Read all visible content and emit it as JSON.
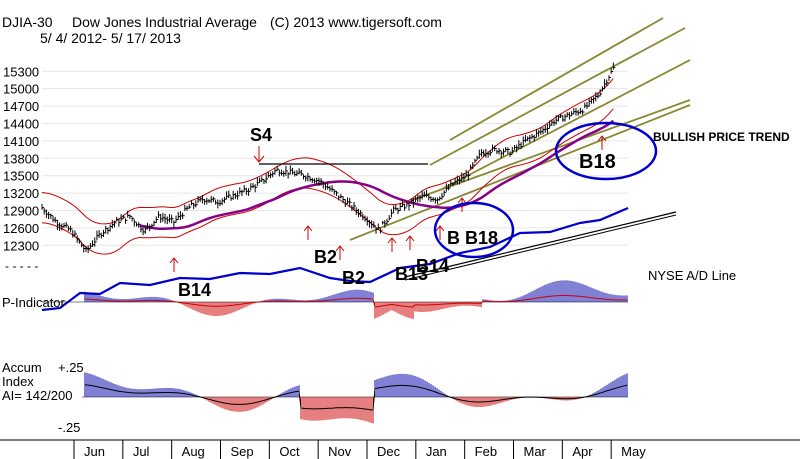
{
  "chart_data": {
    "type": "line",
    "symbol": "DJIA-30",
    "title": "Dow Jones Industrial Average",
    "copyright": "(C) 2013 www.tigersoft.com",
    "date_range": "5/ 4/ 2012- 5/ 17/ 2013",
    "y_ticks": [
      "15300",
      "15000",
      "14700",
      "14400",
      "14100",
      "13800",
      "13500",
      "13200",
      "12900",
      "12600",
      "12300"
    ],
    "y_tick_values": [
      15300,
      15000,
      14700,
      14400,
      14100,
      13800,
      13500,
      13200,
      12900,
      12600,
      12300
    ],
    "ylim": [
      12150,
      15460
    ],
    "months": [
      "Jun",
      "Jul",
      "Aug",
      "Sep",
      "Oct",
      "Nov",
      "Dec",
      "Jan",
      "Feb",
      "Mar",
      "Apr",
      "May"
    ],
    "price_series": {
      "name": "DJIA close (approx.)",
      "t": [
        0,
        0.3,
        0.6,
        0.9,
        1.2,
        1.5,
        1.8,
        2.1,
        2.4,
        2.7,
        3.0,
        3.3,
        3.6,
        3.9,
        4.2,
        4.5,
        4.8,
        5.1,
        5.4,
        5.7,
        6.0,
        6.3,
        6.6,
        6.9,
        7.2,
        7.5,
        7.8,
        8.1,
        8.4,
        8.7,
        9.0,
        9.3,
        9.6,
        9.9,
        10.2,
        10.5,
        10.8,
        11.1,
        11.4,
        11.7
      ],
      "values": [
        12950,
        12700,
        12550,
        12200,
        12500,
        12700,
        12800,
        12550,
        12800,
        12700,
        12950,
        13100,
        13050,
        13150,
        13250,
        13400,
        13600,
        13550,
        13500,
        13400,
        13200,
        13000,
        12800,
        12560,
        12900,
        13000,
        13150,
        13100,
        13350,
        13500,
        13900,
        13950,
        13900,
        14100,
        14250,
        14450,
        14550,
        14650,
        14900,
        15350
      ]
    },
    "series_labels": {
      "ad_line": "NYSE A/D Line",
      "p_indicator": "P-Indicator",
      "accum_index": "Accum",
      "accum_index_line2": "Index",
      "ai_value": "AI= 142/200"
    },
    "accum_axis": {
      "top": "+.25",
      "bottom": "-.25"
    },
    "annotations": {
      "s4": "S4",
      "b2_a": "B2",
      "b2_b": "B2",
      "b13": "B13",
      "b14_a": "B14",
      "b14_b": "B14",
      "b18_circle": "B18",
      "b18_main": "B18",
      "b18_overlap": "B B18",
      "trend": "BULLISH PRICE TREND"
    },
    "colors": {
      "price_bars": "#000000",
      "bands": "#cc0000",
      "moving_average": "#880088",
      "channel_lines": "#888833",
      "ad_line": "#0000cc",
      "signal_circles": "#0000cc",
      "indicator_up": "#0000aa",
      "indicator_down": "#cc0000",
      "signal_arrows": "#cc0000"
    }
  }
}
